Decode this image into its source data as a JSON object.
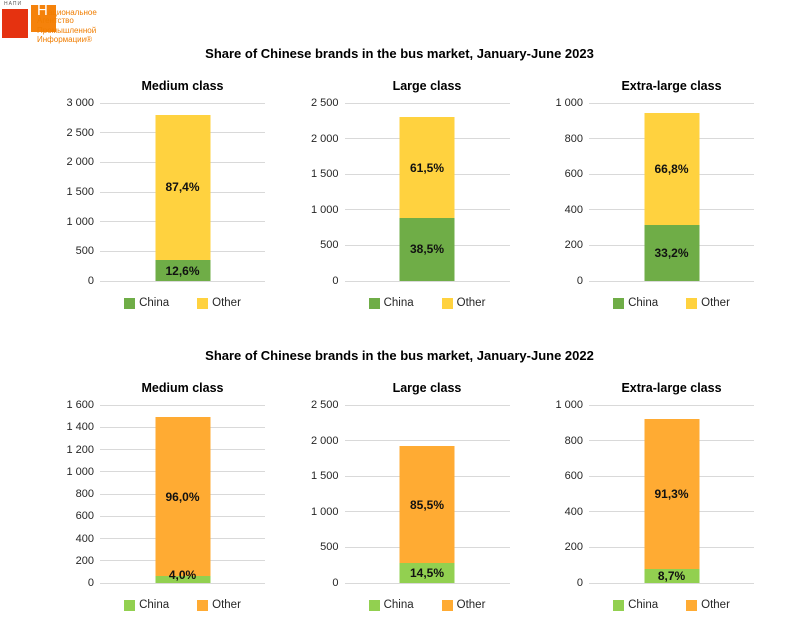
{
  "logo": {
    "mini": "НАПИ",
    "initial": "Н",
    "line1_rest": "ациональное",
    "line2": "Агентство",
    "line3": "Промышленной",
    "line4": "Информации®",
    "red_color": "#e53210",
    "orange_color": "#f5820b",
    "text_color": "#f07d00"
  },
  "chart_data": {
    "type": "bar",
    "stacked": true,
    "grid": true,
    "legend_position": "bottom",
    "groups": [
      {
        "title": "Share of Chinese brands in the bus market, January-June 2023",
        "legend": [
          "China",
          "Other"
        ],
        "colors": {
          "China": "#6fad47",
          "Other": "#ffd23f"
        },
        "charts": [
          {
            "title": "Medium class",
            "ylim": [
              0,
              3000
            ],
            "tick_labels": [
              "3 000",
              "2 500",
              "2 000",
              "1 500",
              "1 000",
              "500",
              "0"
            ],
            "total": 2800,
            "series": [
              {
                "name": "China",
                "value": 353,
                "pct_label": "12,6%"
              },
              {
                "name": "Other",
                "value": 2447,
                "pct_label": "87,4%"
              }
            ]
          },
          {
            "title": "Large class",
            "ylim": [
              0,
              2500
            ],
            "tick_labels": [
              "2 500",
              "2 000",
              "1 500",
              "1 000",
              "500",
              "0"
            ],
            "total": 2300,
            "series": [
              {
                "name": "China",
                "value": 886,
                "pct_label": "38,5%"
              },
              {
                "name": "Other",
                "value": 1414,
                "pct_label": "61,5%"
              }
            ]
          },
          {
            "title": "Extra-large class",
            "ylim": [
              0,
              1000
            ],
            "tick_labels": [
              "1 000",
              "800",
              "600",
              "400",
              "200",
              "0"
            ],
            "total": 945,
            "series": [
              {
                "name": "China",
                "value": 314,
                "pct_label": "33,2%"
              },
              {
                "name": "Other",
                "value": 631,
                "pct_label": "66,8%"
              }
            ]
          }
        ]
      },
      {
        "title": "Share of Chinese brands in the bus market, January-June 2022",
        "legend": [
          "China",
          "Other"
        ],
        "colors": {
          "China": "#92d050",
          "Other": "#ffab33"
        },
        "charts": [
          {
            "title": "Medium class",
            "ylim": [
              0,
              1600
            ],
            "tick_labels": [
              "1 600",
              "1 400",
              "1 200",
              "1 000",
              "800",
              "600",
              "400",
              "200",
              "0"
            ],
            "total": 1490,
            "series": [
              {
                "name": "China",
                "value": 60,
                "pct_label": "4,0%"
              },
              {
                "name": "Other",
                "value": 1430,
                "pct_label": "96,0%"
              }
            ]
          },
          {
            "title": "Large class",
            "ylim": [
              0,
              2500
            ],
            "tick_labels": [
              "2 500",
              "2 000",
              "1 500",
              "1 000",
              "500",
              "0"
            ],
            "total": 1920,
            "series": [
              {
                "name": "China",
                "value": 278,
                "pct_label": "14,5%"
              },
              {
                "name": "Other",
                "value": 1642,
                "pct_label": "85,5%"
              }
            ]
          },
          {
            "title": "Extra-large class",
            "ylim": [
              0,
              1000
            ],
            "tick_labels": [
              "1 000",
              "800",
              "600",
              "400",
              "200",
              "0"
            ],
            "total": 920,
            "series": [
              {
                "name": "China",
                "value": 80,
                "pct_label": "8,7%"
              },
              {
                "name": "Other",
                "value": 840,
                "pct_label": "91,3%"
              }
            ]
          }
        ]
      }
    ]
  }
}
